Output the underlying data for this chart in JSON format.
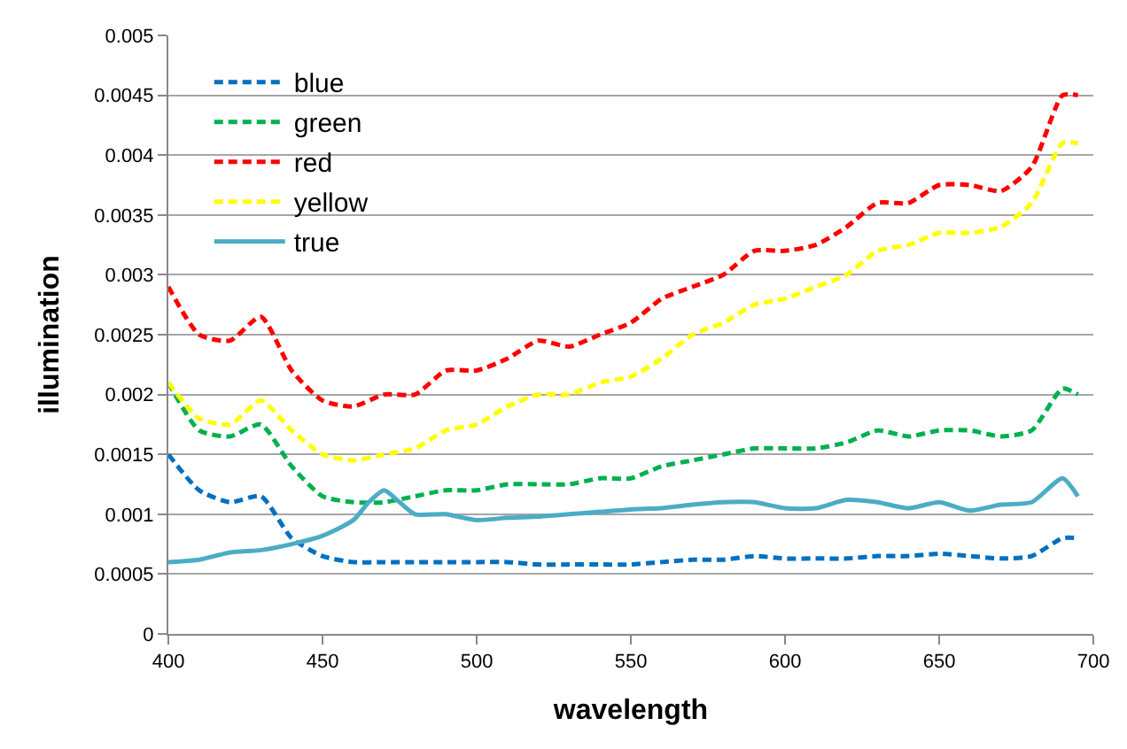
{
  "chart_data": {
    "type": "line",
    "xlabel": "wavelength",
    "ylabel": "illumination",
    "x": [
      400,
      410,
      420,
      430,
      440,
      450,
      460,
      470,
      480,
      490,
      500,
      510,
      520,
      530,
      540,
      550,
      560,
      570,
      580,
      590,
      600,
      610,
      620,
      630,
      640,
      650,
      660,
      670,
      680,
      690,
      695
    ],
    "xlim": [
      400,
      700
    ],
    "xticks": [
      400,
      450,
      500,
      550,
      600,
      650,
      700
    ],
    "ylim": [
      0,
      0.005
    ],
    "yticks": [
      0,
      0.0005,
      0.001,
      0.0015,
      0.002,
      0.0025,
      0.003,
      0.0035,
      0.004,
      0.0045,
      0.005
    ],
    "grid": "y",
    "legend": "top left",
    "marker": "none",
    "series": [
      {
        "name": "blue",
        "color": "#0070c0",
        "line_style": "dashed",
        "values": [
          0.0015,
          0.0012,
          0.0011,
          0.00115,
          0.0008,
          0.00065,
          0.0006,
          0.0006,
          0.0006,
          0.0006,
          0.0006,
          0.0006,
          0.00058,
          0.00058,
          0.00058,
          0.00058,
          0.0006,
          0.00062,
          0.00062,
          0.00065,
          0.00063,
          0.00063,
          0.00063,
          0.00065,
          0.00065,
          0.00067,
          0.00065,
          0.00063,
          0.00065,
          0.0008,
          0.0008
        ]
      },
      {
        "name": "green",
        "color": "#00b050",
        "line_style": "dashed",
        "values": [
          0.0021,
          0.0017,
          0.00165,
          0.00175,
          0.0014,
          0.00115,
          0.0011,
          0.0011,
          0.00115,
          0.0012,
          0.0012,
          0.00125,
          0.00125,
          0.00125,
          0.0013,
          0.0013,
          0.0014,
          0.00145,
          0.0015,
          0.00155,
          0.00155,
          0.00155,
          0.0016,
          0.0017,
          0.00165,
          0.0017,
          0.0017,
          0.00165,
          0.0017,
          0.00205,
          0.002
        ]
      },
      {
        "name": "red",
        "color": "#ff0000",
        "line_style": "dashed",
        "values": [
          0.0029,
          0.0025,
          0.00245,
          0.00265,
          0.0022,
          0.00195,
          0.0019,
          0.002,
          0.002,
          0.0022,
          0.0022,
          0.0023,
          0.00245,
          0.0024,
          0.0025,
          0.0026,
          0.0028,
          0.0029,
          0.003,
          0.0032,
          0.0032,
          0.00325,
          0.0034,
          0.0036,
          0.0036,
          0.00375,
          0.00375,
          0.0037,
          0.0039,
          0.0045,
          0.0045
        ]
      },
      {
        "name": "yellow",
        "color": "#ffff00",
        "line_style": "dashed",
        "values": [
          0.0021,
          0.0018,
          0.00175,
          0.00195,
          0.0017,
          0.0015,
          0.00145,
          0.0015,
          0.00155,
          0.0017,
          0.00175,
          0.0019,
          0.002,
          0.002,
          0.0021,
          0.00215,
          0.0023,
          0.0025,
          0.0026,
          0.00275,
          0.0028,
          0.0029,
          0.003,
          0.0032,
          0.00325,
          0.00335,
          0.00335,
          0.0034,
          0.0036,
          0.0041,
          0.0041
        ]
      },
      {
        "name": "true",
        "color": "#4bacc6",
        "line_style": "solid",
        "x": [
          400,
          410,
          420,
          430,
          440,
          450,
          460,
          465,
          470,
          475,
          480,
          490,
          500,
          510,
          520,
          530,
          540,
          550,
          560,
          570,
          580,
          590,
          600,
          610,
          620,
          630,
          640,
          650,
          660,
          670,
          680,
          690,
          695
        ],
        "values": [
          0.0006,
          0.00062,
          0.00068,
          0.0007,
          0.00075,
          0.00082,
          0.00095,
          0.0011,
          0.0012,
          0.0011,
          0.001,
          0.001,
          0.00095,
          0.00097,
          0.00098,
          0.001,
          0.00102,
          0.00104,
          0.00105,
          0.00108,
          0.0011,
          0.0011,
          0.00105,
          0.00105,
          0.00112,
          0.0011,
          0.00105,
          0.0011,
          0.00103,
          0.00108,
          0.0011,
          0.0013,
          0.00115
        ]
      }
    ]
  }
}
